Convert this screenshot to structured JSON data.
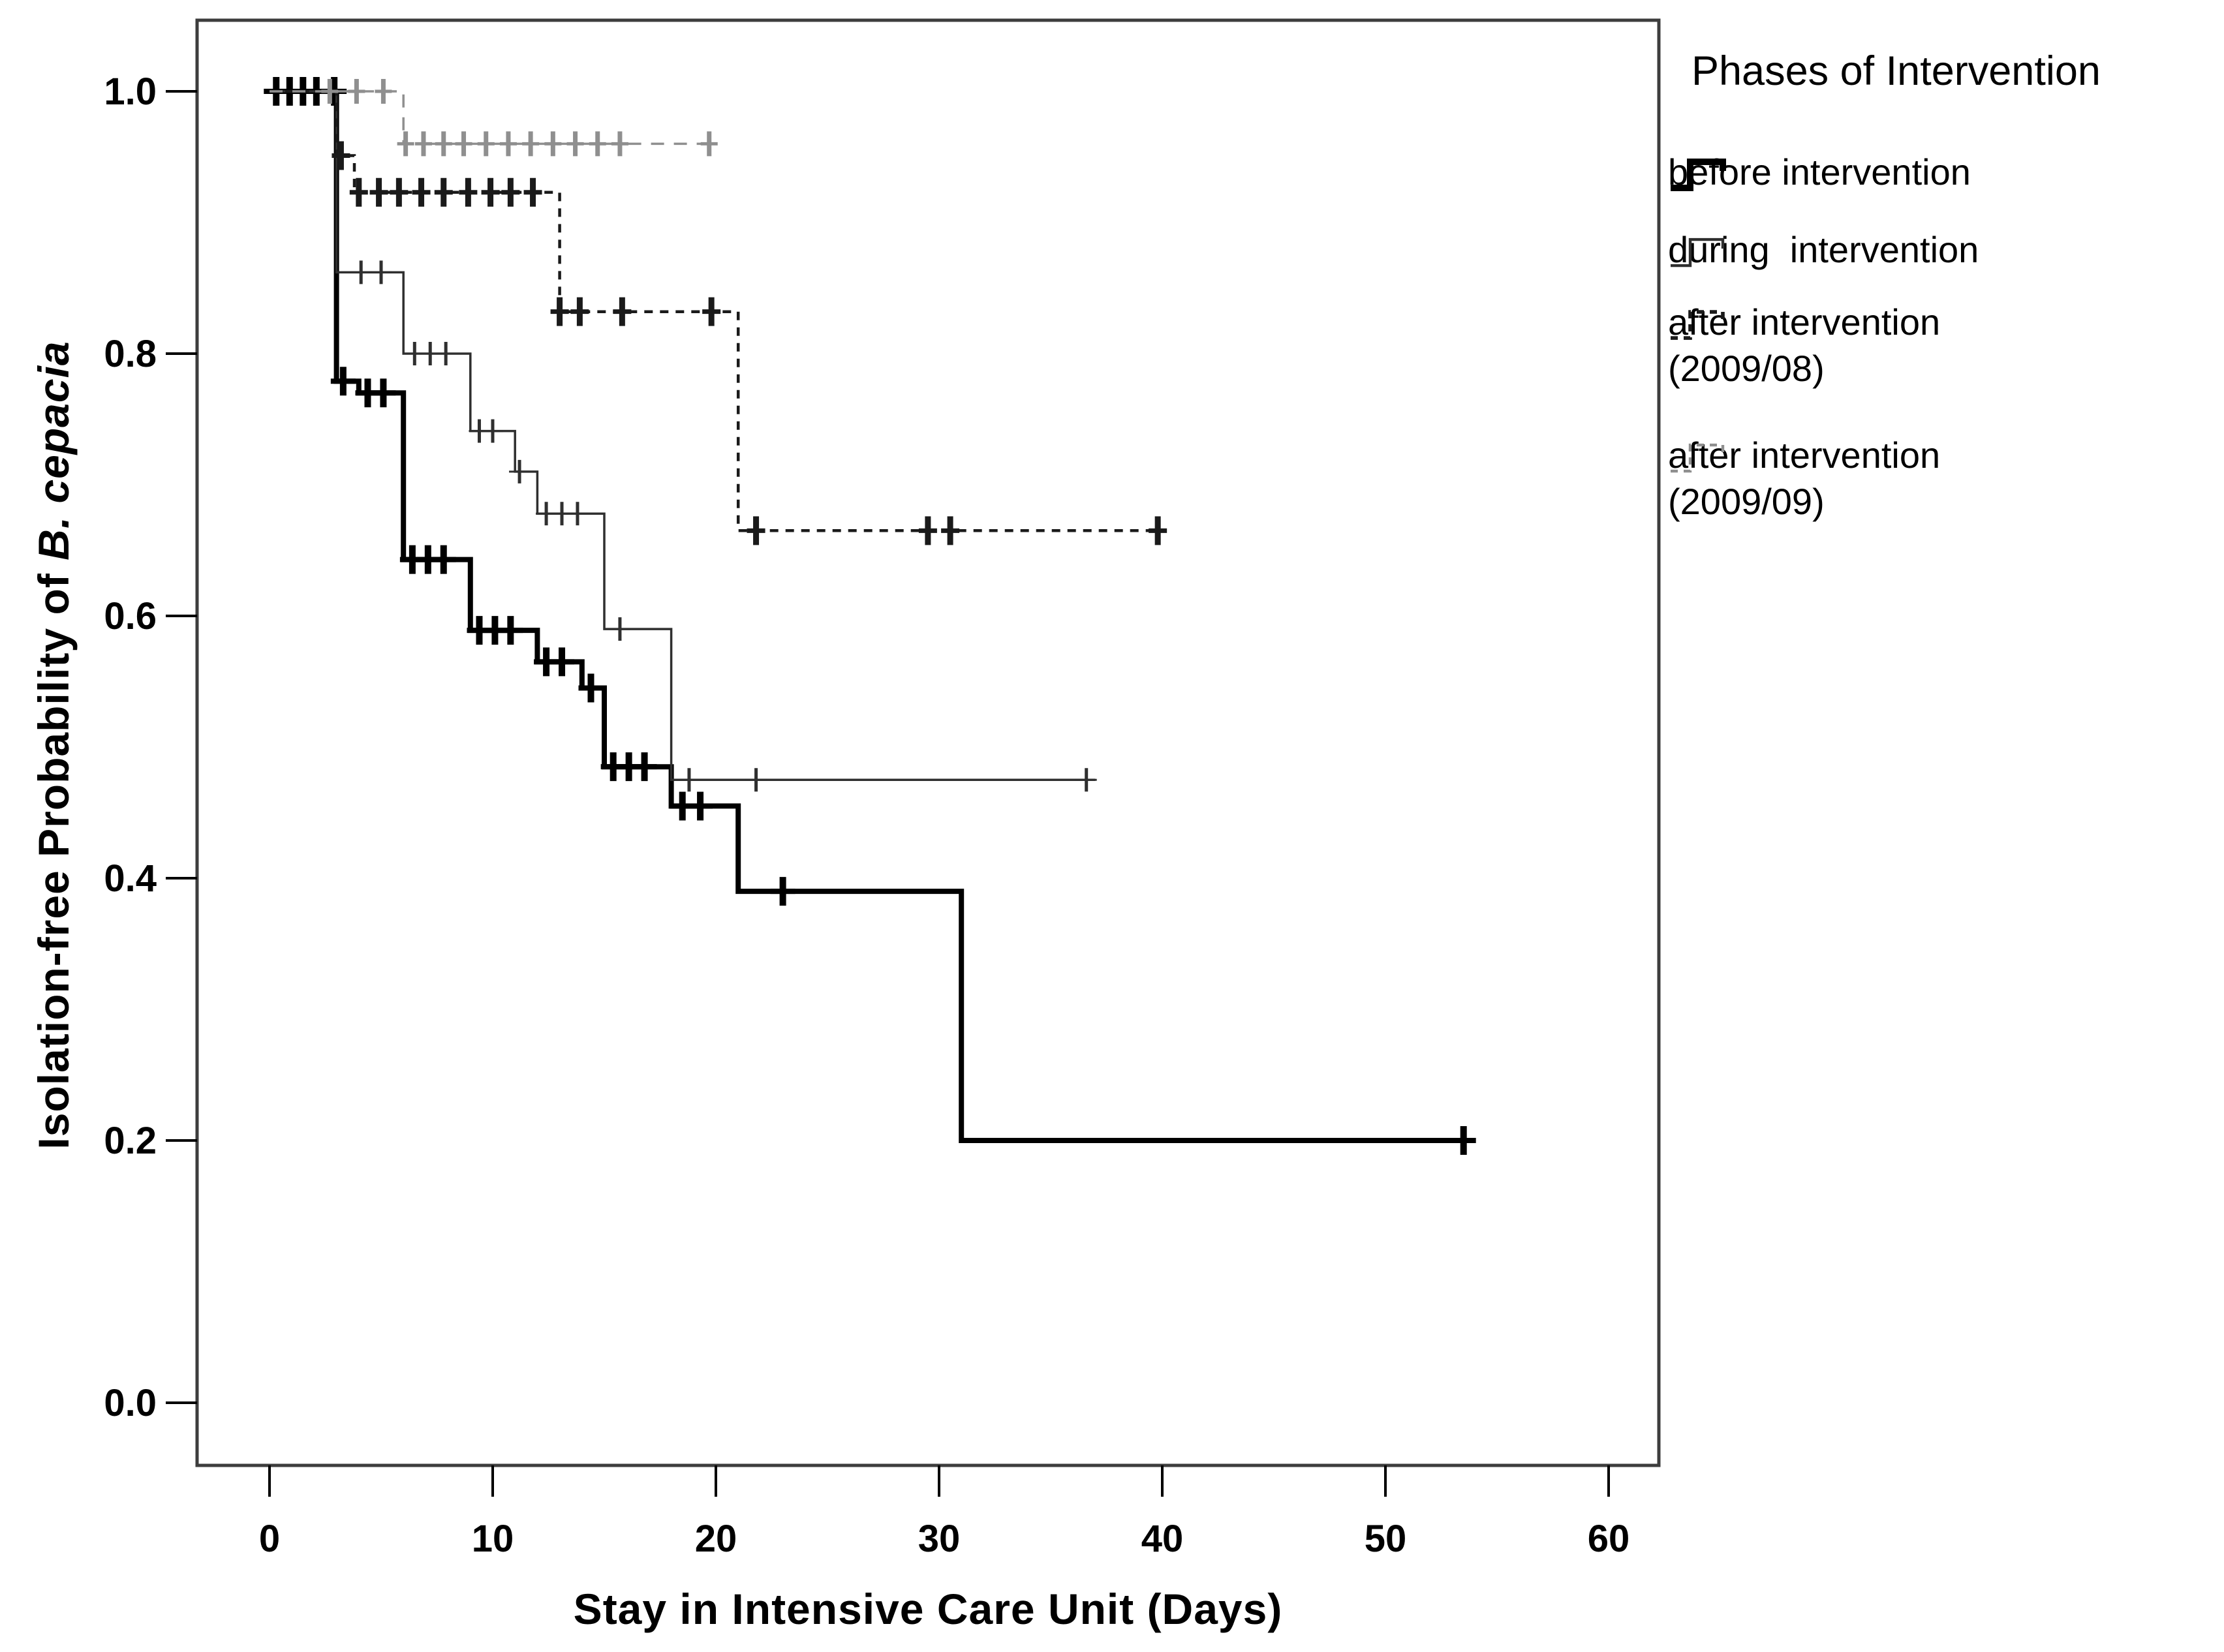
{
  "chart_data": {
    "type": "line",
    "subtype": "kaplan-meier-step-survival",
    "title": "",
    "xlabel": "Stay in Intensive Care Unit (Days)",
    "ylabel_prefix": "Isolation-free Probability of ",
    "ylabel_italic": "B. cepacia",
    "xticks": [
      0,
      10,
      20,
      30,
      40,
      50,
      60
    ],
    "ytick_labels": [
      "0.0",
      "0.2",
      "0.4",
      "0.6",
      "0.8",
      "1.0"
    ],
    "xlim": [
      -3.2,
      62.3
    ],
    "ylim": [
      -0.05,
      1.06
    ],
    "grid": false,
    "legend_position": "outside-right-top",
    "legend_title": "Phases of Intervention",
    "frame_color": "#3d3d3d",
    "background": "#ffffff",
    "series": [
      {
        "name": "before intervention",
        "label": "before intervention",
        "line": "solid",
        "color": "#000000",
        "stroke_width": 8,
        "dash": "",
        "steps": [
          [
            0,
            1.0
          ],
          [
            3,
            1.0
          ],
          [
            3,
            0.779
          ],
          [
            4,
            0.779
          ],
          [
            4,
            0.77
          ],
          [
            6,
            0.77
          ],
          [
            6,
            0.643
          ],
          [
            9,
            0.643
          ],
          [
            9,
            0.589
          ],
          [
            12,
            0.589
          ],
          [
            12,
            0.565
          ],
          [
            14,
            0.565
          ],
          [
            14,
            0.545
          ],
          [
            15,
            0.545
          ],
          [
            15,
            0.485
          ],
          [
            18,
            0.485
          ],
          [
            18,
            0.455
          ],
          [
            21,
            0.455
          ],
          [
            21,
            0.39
          ],
          [
            31,
            0.39
          ],
          [
            31,
            0.2
          ],
          [
            54,
            0.2
          ]
        ],
        "censors": [
          [
            0.3,
            1.0
          ],
          [
            0.9,
            1.0
          ],
          [
            1.5,
            1.0
          ],
          [
            2.1,
            1.0
          ],
          [
            2.9,
            1.0
          ],
          [
            3.3,
            0.779
          ],
          [
            4.4,
            0.77
          ],
          [
            5.1,
            0.77
          ],
          [
            6.4,
            0.643
          ],
          [
            7.1,
            0.643
          ],
          [
            7.8,
            0.643
          ],
          [
            9.4,
            0.589
          ],
          [
            10.1,
            0.589
          ],
          [
            10.8,
            0.589
          ],
          [
            12.4,
            0.565
          ],
          [
            13.1,
            0.565
          ],
          [
            14.4,
            0.545
          ],
          [
            15.4,
            0.485
          ],
          [
            16.1,
            0.485
          ],
          [
            16.8,
            0.485
          ],
          [
            18.5,
            0.455
          ],
          [
            19.3,
            0.455
          ],
          [
            23.0,
            0.39
          ],
          [
            53.5,
            0.2
          ]
        ]
      },
      {
        "name": "during intervention",
        "label": "during  intervention",
        "line": "solid",
        "color": "#2f2f2f",
        "stroke_width": 3.5,
        "dash": "",
        "steps": [
          [
            0,
            1.0
          ],
          [
            3,
            1.0
          ],
          [
            3,
            0.862
          ],
          [
            6,
            0.862
          ],
          [
            6,
            0.8
          ],
          [
            9,
            0.8
          ],
          [
            9,
            0.741
          ],
          [
            11,
            0.741
          ],
          [
            11,
            0.71
          ],
          [
            12,
            0.71
          ],
          [
            12,
            0.678
          ],
          [
            15,
            0.678
          ],
          [
            15,
            0.59
          ],
          [
            18,
            0.59
          ],
          [
            18,
            0.475
          ],
          [
            37,
            0.475
          ]
        ],
        "censors": [
          [
            4.1,
            0.862
          ],
          [
            5.0,
            0.862
          ],
          [
            6.5,
            0.8
          ],
          [
            7.2,
            0.8
          ],
          [
            7.9,
            0.8
          ],
          [
            9.4,
            0.741
          ],
          [
            10.0,
            0.741
          ],
          [
            11.2,
            0.71
          ],
          [
            12.4,
            0.678
          ],
          [
            13.1,
            0.678
          ],
          [
            13.8,
            0.678
          ],
          [
            15.7,
            0.59
          ],
          [
            18.8,
            0.475
          ],
          [
            21.8,
            0.475
          ],
          [
            36.6,
            0.475
          ]
        ]
      },
      {
        "name": "after intervention (2009/08)",
        "label": "after intervention\n(2009/08)",
        "line": "dashed",
        "color": "#1a1a1a",
        "stroke_width": 4.5,
        "dash": "13 11",
        "steps": [
          [
            0,
            1.0
          ],
          [
            3,
            1.0
          ],
          [
            3,
            0.951
          ],
          [
            3.8,
            0.951
          ],
          [
            3.8,
            0.923
          ],
          [
            13,
            0.923
          ],
          [
            13,
            0.832
          ],
          [
            21,
            0.832
          ],
          [
            21,
            0.665
          ],
          [
            40,
            0.665
          ]
        ],
        "censors": [
          [
            3.2,
            0.951
          ],
          [
            4.0,
            0.923
          ],
          [
            4.9,
            0.923
          ],
          [
            5.8,
            0.923
          ],
          [
            6.8,
            0.923
          ],
          [
            7.8,
            0.923
          ],
          [
            8.9,
            0.923
          ],
          [
            9.9,
            0.923
          ],
          [
            10.8,
            0.923
          ],
          [
            11.8,
            0.923
          ],
          [
            13.0,
            0.832
          ],
          [
            13.9,
            0.832
          ],
          [
            15.8,
            0.832
          ],
          [
            19.8,
            0.832
          ],
          [
            21.8,
            0.665
          ],
          [
            29.5,
            0.665
          ],
          [
            30.5,
            0.665
          ],
          [
            39.8,
            0.665
          ]
        ]
      },
      {
        "name": "after intervention (2009/09)",
        "label": "after intervention\n(2009/09)",
        "line": "dashed",
        "color": "#8f8f8f",
        "stroke_width": 3.5,
        "dash": "20 15",
        "steps": [
          [
            0,
            1.0
          ],
          [
            6,
            1.0
          ],
          [
            6,
            0.96
          ],
          [
            20,
            0.96
          ]
        ],
        "censors": [
          [
            2.7,
            1.0
          ],
          [
            3.9,
            1.0
          ],
          [
            5.1,
            1.0
          ],
          [
            6.1,
            0.96
          ],
          [
            6.9,
            0.96
          ],
          [
            7.8,
            0.96
          ],
          [
            8.7,
            0.96
          ],
          [
            9.7,
            0.96
          ],
          [
            10.7,
            0.96
          ],
          [
            11.7,
            0.96
          ],
          [
            12.7,
            0.96
          ],
          [
            13.7,
            0.96
          ],
          [
            14.7,
            0.96
          ],
          [
            15.7,
            0.96
          ],
          [
            19.7,
            0.96
          ]
        ]
      }
    ]
  }
}
